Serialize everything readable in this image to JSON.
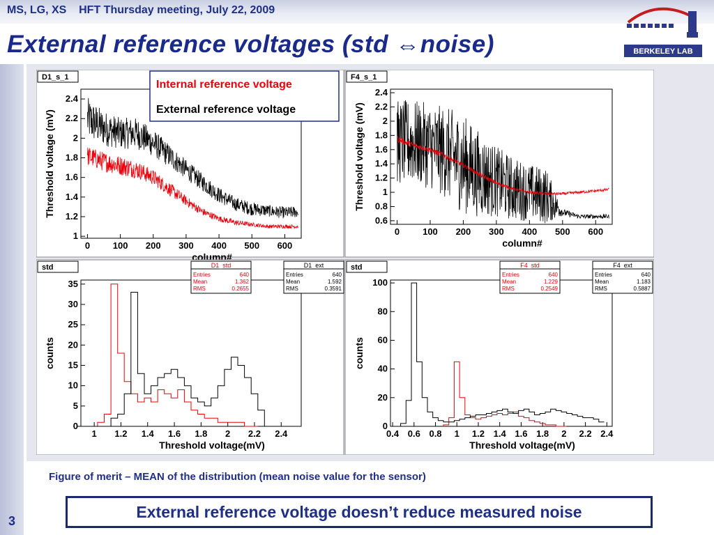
{
  "header": {
    "text": "MS, LG, XS    HFT Thursday meeting, July 22, 2009"
  },
  "slide": {
    "title": "External reference voltages (std ⇔noise)",
    "figure_caption": "Figure of merit – MEAN of the distribution (mean noise value for the sensor)",
    "conclusion": "External reference voltage doesn’t reduce measured noise",
    "page_number": "3"
  },
  "logo": {
    "text": "BERKELEY LAB"
  },
  "legend": {
    "internal_label": "Internal reference voltage",
    "external_label": "External reference voltage",
    "internal_color": "#e8000b",
    "external_color": "#000000"
  },
  "colors": {
    "title_blue": "#1a2a8a",
    "internal": "#e8000b",
    "external": "#000000"
  },
  "chart_data": [
    {
      "type": "line",
      "panel_label": "D1_s_1",
      "xlabel": "column#",
      "ylabel": "Threshold voltage (mV)",
      "xlim": [
        -20,
        650
      ],
      "ylim": [
        0.98,
        2.5
      ],
      "xticks": [
        0,
        100,
        200,
        300,
        400,
        500,
        600
      ],
      "yticks": [
        1,
        1.2,
        1.4,
        1.6,
        1.8,
        2,
        2.2,
        2.4
      ],
      "series": [
        {
          "name": "External reference voltage",
          "color": "#000000",
          "x": [
            0,
            50,
            100,
            150,
            200,
            250,
            300,
            350,
            400,
            450,
            500,
            550,
            600,
            640
          ],
          "y": [
            2.2,
            2.1,
            2.05,
            2.05,
            1.95,
            1.82,
            1.68,
            1.55,
            1.42,
            1.33,
            1.28,
            1.26,
            1.24,
            1.25
          ],
          "spread": [
            0.22,
            0.18,
            0.16,
            0.16,
            0.14,
            0.12,
            0.1,
            0.09,
            0.08,
            0.07,
            0.07,
            0.06,
            0.06,
            0.06
          ]
        },
        {
          "name": "Internal reference voltage",
          "color": "#e8000b",
          "x": [
            0,
            50,
            100,
            150,
            200,
            250,
            300,
            350,
            400,
            450,
            500,
            550,
            600,
            640
          ],
          "y": [
            1.82,
            1.76,
            1.72,
            1.68,
            1.6,
            1.48,
            1.36,
            1.25,
            1.18,
            1.14,
            1.12,
            1.1,
            1.1,
            1.1
          ],
          "spread": [
            0.1,
            0.1,
            0.1,
            0.09,
            0.08,
            0.07,
            0.05,
            0.04,
            0.03,
            0.03,
            0.02,
            0.02,
            0.02,
            0.02
          ]
        }
      ]
    },
    {
      "type": "line",
      "panel_label": "F4_s_1",
      "xlabel": "column#",
      "ylabel": "Threshold voltage (mV)",
      "xlim": [
        -20,
        650
      ],
      "ylim": [
        0.55,
        2.45
      ],
      "xticks": [
        0,
        100,
        200,
        300,
        400,
        500,
        600
      ],
      "yticks": [
        0.6,
        0.8,
        1,
        1.2,
        1.4,
        1.6,
        1.8,
        2,
        2.2,
        2.4
      ],
      "series": [
        {
          "name": "External reference voltage",
          "color": "#000000",
          "x": [
            0,
            50,
            100,
            150,
            200,
            250,
            300,
            350,
            400,
            450,
            500,
            550,
            600,
            640
          ],
          "y": [
            1.7,
            1.7,
            1.65,
            1.55,
            1.4,
            1.25,
            1.15,
            1.05,
            1.0,
            0.95,
            0.72,
            0.66,
            0.66,
            0.66
          ],
          "spread": [
            0.6,
            0.6,
            0.6,
            0.65,
            0.7,
            0.6,
            0.5,
            0.45,
            0.4,
            0.4,
            0.05,
            0.03,
            0.03,
            0.03
          ]
        },
        {
          "name": "Internal reference voltage",
          "color": "#e8000b",
          "x": [
            0,
            50,
            100,
            150,
            200,
            250,
            300,
            350,
            400,
            450,
            500,
            550,
            600,
            640
          ],
          "y": [
            1.75,
            1.66,
            1.6,
            1.5,
            1.38,
            1.25,
            1.13,
            1.05,
            1.0,
            0.98,
            0.98,
            1.0,
            1.02,
            1.04
          ],
          "spread": [
            0.05,
            0.04,
            0.04,
            0.04,
            0.03,
            0.03,
            0.03,
            0.02,
            0.02,
            0.02,
            0.02,
            0.02,
            0.02,
            0.02
          ]
        }
      ]
    },
    {
      "type": "bar",
      "panel_label": "std",
      "xlabel": "Threshold voltage(mV)",
      "ylabel": "counts",
      "xlim": [
        0.9,
        2.55
      ],
      "ylim": [
        0,
        36
      ],
      "xticks": [
        1,
        1.2,
        1.4,
        1.6,
        1.8,
        2,
        2.2,
        2.4
      ],
      "yticks": [
        0,
        5,
        10,
        15,
        20,
        25,
        30,
        35
      ],
      "stats": [
        {
          "title": "D1_std",
          "color": "#e8000b",
          "Entries": "640",
          "Mean": "1.362",
          "RMS": "0.2655"
        },
        {
          "title": "D1_ext",
          "color": "#000000",
          "Entries": "640",
          "Mean": "1.592",
          "RMS": "0.3591"
        }
      ],
      "series": [
        {
          "name": "D1_std",
          "color": "#e8000b",
          "x": [
            0.9,
            0.95,
            1.0,
            1.05,
            1.1,
            1.15,
            1.2,
            1.25,
            1.3,
            1.35,
            1.4,
            1.45,
            1.5,
            1.55,
            1.6,
            1.65,
            1.7,
            1.75,
            1.8,
            1.85,
            1.9,
            1.95,
            2.0,
            2.05,
            2.1,
            2.15,
            2.2
          ],
          "y": [
            0,
            0,
            0,
            1,
            3,
            35,
            18,
            11,
            8,
            6,
            7,
            6,
            9,
            8,
            7,
            9,
            6,
            4,
            3,
            2,
            2,
            1,
            1,
            1,
            1,
            0,
            0
          ]
        },
        {
          "name": "D1_ext",
          "color": "#000000",
          "x": [
            0.9,
            0.95,
            1.0,
            1.05,
            1.1,
            1.15,
            1.2,
            1.25,
            1.3,
            1.35,
            1.4,
            1.45,
            1.5,
            1.55,
            1.6,
            1.65,
            1.7,
            1.75,
            1.8,
            1.85,
            1.9,
            1.95,
            2.0,
            2.05,
            2.1,
            2.15,
            2.2,
            2.25,
            2.3
          ],
          "y": [
            0,
            0,
            0,
            0,
            0,
            2,
            3,
            8,
            33,
            13,
            8,
            10,
            12,
            13,
            14,
            12,
            10,
            7,
            6,
            5,
            7,
            10,
            14,
            17,
            15,
            12,
            8,
            4,
            0
          ]
        }
      ]
    },
    {
      "type": "bar",
      "panel_label": "std",
      "xlabel": "Threshold voltage(mV)",
      "ylabel": "counts",
      "xlim": [
        0.38,
        2.45
      ],
      "ylim": [
        0,
        102
      ],
      "xticks": [
        0.4,
        0.6,
        0.8,
        1,
        1.2,
        1.4,
        1.6,
        1.8,
        2,
        2.2,
        2.4
      ],
      "yticks": [
        0,
        20,
        40,
        60,
        80,
        100
      ],
      "stats": [
        {
          "title": "F4_std",
          "color": "#e8000b",
          "Entries": "640",
          "Mean": "1.229",
          "RMS": "0.2549"
        },
        {
          "title": "F4_ext",
          "color": "#000000",
          "Entries": "640",
          "Mean": "1.183",
          "RMS": "0.5887"
        }
      ],
      "series": [
        {
          "name": "F4_std",
          "color": "#e8000b",
          "x": [
            0.9,
            0.95,
            1.0,
            1.05,
            1.1,
            1.15,
            1.2,
            1.25,
            1.3,
            1.35,
            1.4,
            1.45,
            1.5,
            1.55,
            1.6,
            1.65,
            1.7,
            1.75,
            1.8,
            1.85,
            1.9,
            1.95,
            2.0
          ],
          "y": [
            1,
            6,
            45,
            20,
            8,
            6,
            5,
            6,
            7,
            8,
            9,
            8,
            9,
            10,
            7,
            6,
            4,
            3,
            2,
            1,
            1,
            0,
            0
          ]
        },
        {
          "name": "F4_ext",
          "color": "#000000",
          "x": [
            0.45,
            0.5,
            0.55,
            0.6,
            0.65,
            0.7,
            0.75,
            0.8,
            0.85,
            0.9,
            0.95,
            1.0,
            1.05,
            1.1,
            1.15,
            1.2,
            1.25,
            1.3,
            1.35,
            1.4,
            1.45,
            1.5,
            1.55,
            1.6,
            1.65,
            1.7,
            1.75,
            1.8,
            1.85,
            1.9,
            1.95,
            2.0,
            2.05,
            2.1,
            2.15,
            2.2,
            2.25,
            2.3,
            2.35
          ],
          "y": [
            0,
            2,
            18,
            100,
            45,
            20,
            10,
            6,
            4,
            3,
            3,
            4,
            5,
            6,
            7,
            8,
            8,
            9,
            10,
            11,
            12,
            10,
            9,
            11,
            12,
            10,
            8,
            9,
            10,
            12,
            11,
            10,
            9,
            8,
            7,
            6,
            6,
            5,
            3
          ]
        }
      ]
    }
  ]
}
